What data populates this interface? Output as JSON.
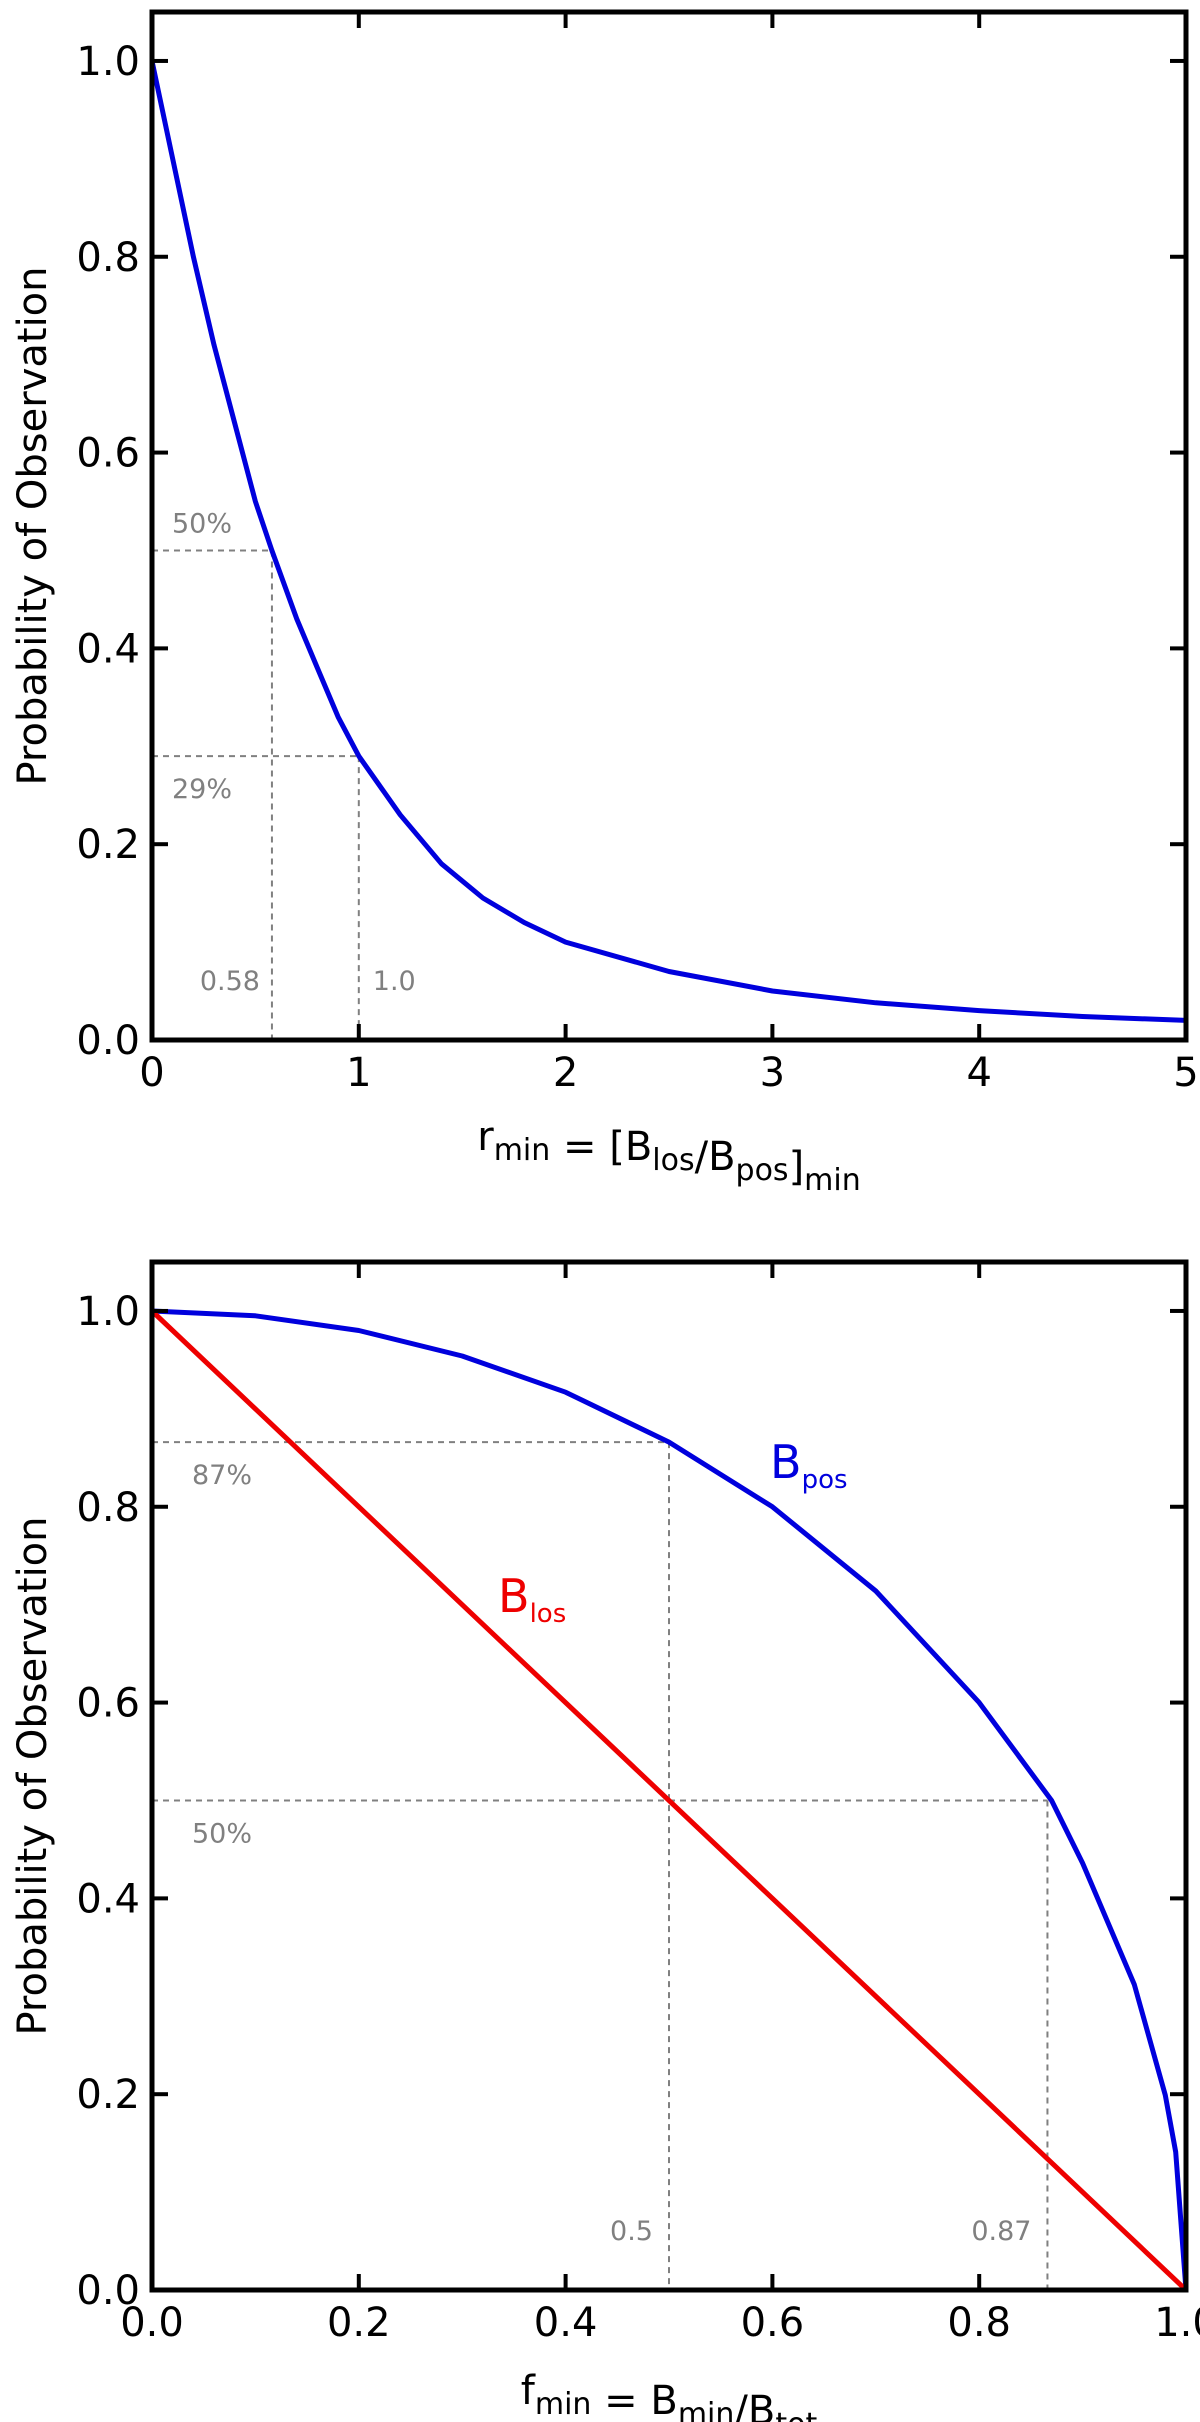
{
  "chart_data": [
    {
      "type": "line",
      "title": "",
      "xlabel": {
        "base": "r",
        "sub": "min",
        "mid": " = [B",
        "sub2": "los",
        "mid2": "/B",
        "sub3": "pos",
        "end": "]",
        "sub4": "min"
      },
      "ylabel": "Probability of Observation",
      "xlim": [
        0,
        5
      ],
      "ylim": [
        0,
        1.05
      ],
      "xticks": [
        0,
        1,
        2,
        3,
        4,
        5
      ],
      "xtick_labels": [
        "0",
        "1",
        "2",
        "3",
        "4",
        "5"
      ],
      "yticks": [
        0,
        0.2,
        0.4,
        0.6,
        0.8,
        1.0
      ],
      "ytick_labels": [
        "0.0",
        "0.2",
        "0.4",
        "0.6",
        "0.8",
        "1.0"
      ],
      "grid": false,
      "series": [
        {
          "color": "#0000dd",
          "x": [
            0,
            0.1,
            0.2,
            0.3,
            0.4,
            0.5,
            0.58,
            0.7,
            0.8,
            0.9,
            1.0,
            1.2,
            1.4,
            1.6,
            1.8,
            2.0,
            2.5,
            3.0,
            3.5,
            4.0,
            4.5,
            5.0
          ],
          "y": [
            1.0,
            0.9,
            0.8,
            0.71,
            0.63,
            0.55,
            0.5,
            0.43,
            0.38,
            0.33,
            0.29,
            0.23,
            0.18,
            0.145,
            0.12,
            0.1,
            0.07,
            0.05,
            0.038,
            0.03,
            0.024,
            0.02
          ]
        }
      ],
      "annotations": [
        {
          "text": "50%",
          "x": 0.58,
          "y": 0.5
        },
        {
          "text": "29%",
          "x": 1.0,
          "y": 0.29
        },
        {
          "text": "0.58",
          "x": 0.58,
          "y": 0.5
        },
        {
          "text": "1.0",
          "x": 1.0,
          "y": 0.29
        }
      ]
    },
    {
      "type": "line",
      "title": "",
      "xlabel": {
        "base": "f",
        "sub": "min",
        "mid": " = B",
        "sub2": "min",
        "mid2": "/B",
        "sub3": "tot",
        "end": "",
        "sub4": ""
      },
      "ylabel": "Probability of Observation",
      "xlim": [
        0,
        1.0
      ],
      "ylim": [
        0,
        1.05
      ],
      "xticks": [
        0,
        0.2,
        0.4,
        0.6,
        0.8,
        1.0
      ],
      "xtick_labels": [
        "0.0",
        "0.2",
        "0.4",
        "0.6",
        "0.8",
        "1.0"
      ],
      "yticks": [
        0,
        0.2,
        0.4,
        0.6,
        0.8,
        1.0
      ],
      "ytick_labels": [
        "0.0",
        "0.2",
        "0.4",
        "0.6",
        "0.8",
        "1.0"
      ],
      "grid": false,
      "series": [
        {
          "name_base": "B",
          "name_sub": "pos",
          "color": "#0000dd",
          "x": [
            0,
            0.1,
            0.2,
            0.3,
            0.4,
            0.5,
            0.6,
            0.7,
            0.8,
            0.87,
            0.9,
            0.95,
            0.98,
            0.99,
            1.0
          ],
          "y": [
            1.0,
            0.995,
            0.98,
            0.954,
            0.917,
            0.866,
            0.8,
            0.714,
            0.6,
            0.5,
            0.436,
            0.312,
            0.199,
            0.141,
            0.0
          ]
        },
        {
          "name_base": "B",
          "name_sub": "los",
          "color": "#ee0000",
          "x": [
            0,
            1.0
          ],
          "y": [
            1.0,
            0.0
          ]
        }
      ],
      "annotations": [
        {
          "text": "87%",
          "x": 0.5,
          "y": 0.866
        },
        {
          "text": "50%",
          "x": 0.866,
          "y": 0.5
        },
        {
          "text": "0.5",
          "x": 0.5,
          "y": 0.866
        },
        {
          "text": "0.87",
          "x": 0.866,
          "y": 0.5
        }
      ]
    }
  ]
}
